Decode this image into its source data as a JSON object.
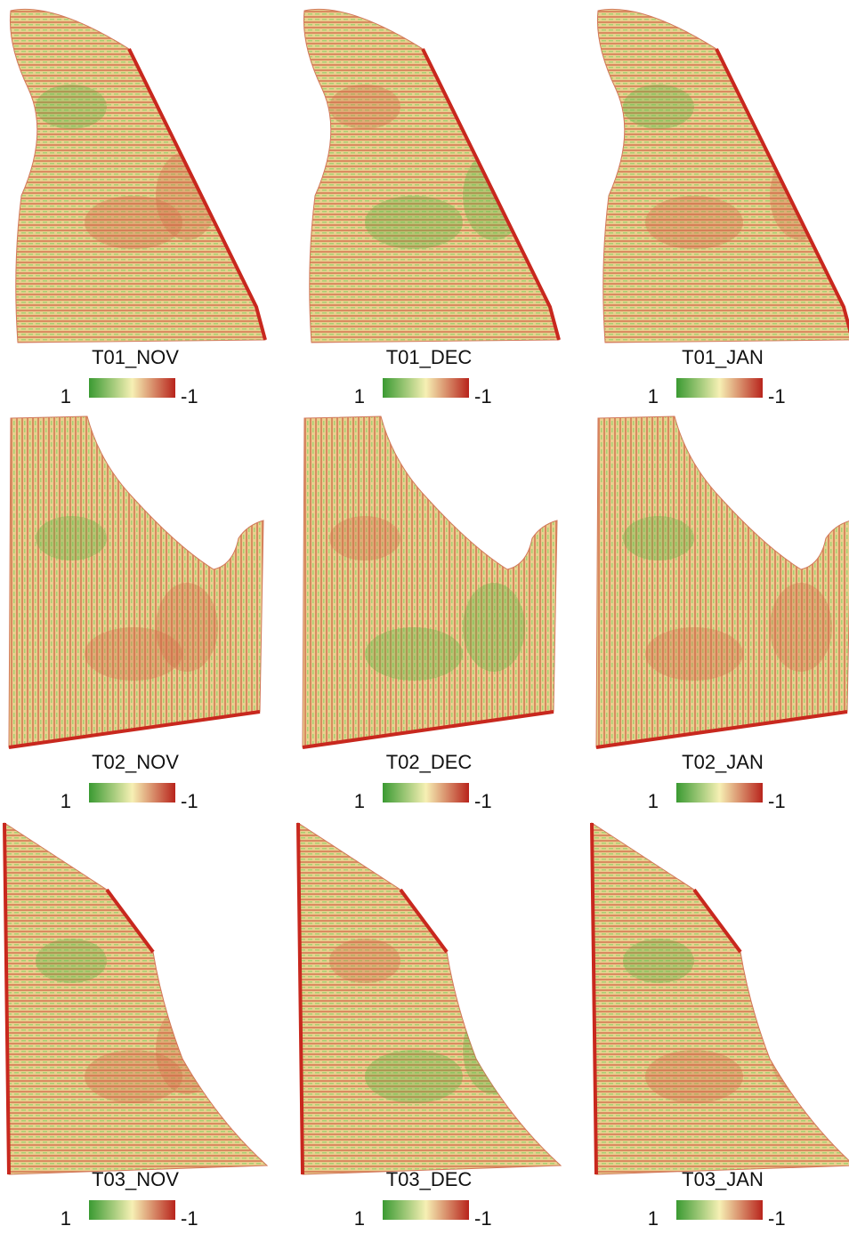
{
  "panels": [
    {
      "title": "T01_NOV",
      "legend": {
        "left": "1",
        "right": "-1"
      }
    },
    {
      "title": "T01_DEC",
      "legend": {
        "left": "1",
        "right": "-1"
      }
    },
    {
      "title": "T01_JAN",
      "legend": {
        "left": "1",
        "right": "-1"
      }
    },
    {
      "title": "T02_NOV",
      "legend": {
        "left": "1",
        "right": "-1"
      }
    },
    {
      "title": "T02_DEC",
      "legend": {
        "left": "1",
        "right": "-1"
      }
    },
    {
      "title": "T02_JAN",
      "legend": {
        "left": "1",
        "right": "-1"
      }
    },
    {
      "title": "T03_NOV",
      "legend": {
        "left": "1",
        "right": "-1"
      }
    },
    {
      "title": "T03_DEC",
      "legend": {
        "left": "1",
        "right": "-1"
      }
    },
    {
      "title": "T03_JAN",
      "legend": {
        "left": "1",
        "right": "-1"
      }
    }
  ]
}
